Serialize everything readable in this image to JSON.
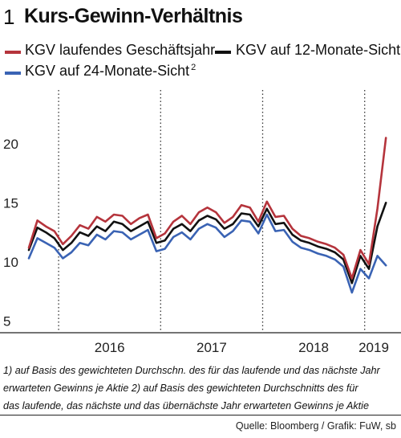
{
  "header": {
    "number": "1",
    "title": "Kurs-Gewinn-Verhältnis"
  },
  "legend": [
    {
      "label": "KGV laufendes Geschäftsjahr",
      "sup": "",
      "color": "#b5343c"
    },
    {
      "label": "KGV auf 12-Monate-Sicht",
      "sup": "1",
      "color": "#111111"
    },
    {
      "label": "KGV auf 24-Monate-Sicht",
      "sup": "2",
      "color": "#3a63b4"
    }
  ],
  "chart_data": {
    "type": "line",
    "title": "Kurs-Gewinn-Verhältnis",
    "xlabel": "",
    "ylabel": "",
    "x_range": [
      "2015-09",
      "2019-03"
    ],
    "ylim": [
      4,
      24
    ],
    "yticks": [
      5,
      10,
      15,
      20
    ],
    "xticklabels": [
      "2016",
      "2017",
      "2018",
      "2019"
    ],
    "grid": "vertical dotted lines at year boundaries",
    "legend_position": "top",
    "x": [
      "2015-09",
      "2015-10",
      "2015-11",
      "2015-12",
      "2016-01",
      "2016-02",
      "2016-03",
      "2016-04",
      "2016-05",
      "2016-06",
      "2016-07",
      "2016-08",
      "2016-09",
      "2016-10",
      "2016-11",
      "2016-12",
      "2017-01",
      "2017-02",
      "2017-03",
      "2017-04",
      "2017-05",
      "2017-06",
      "2017-07",
      "2017-08",
      "2017-09",
      "2017-10",
      "2017-11",
      "2017-12",
      "2018-01",
      "2018-02",
      "2018-03",
      "2018-04",
      "2018-05",
      "2018-06",
      "2018-07",
      "2018-08",
      "2018-09",
      "2018-10",
      "2018-11",
      "2018-12",
      "2019-01",
      "2019-02",
      "2019-03"
    ],
    "series": [
      {
        "name": "KGV laufendes Geschäftsjahr",
        "color": "#b5343c",
        "values": [
          11.2,
          13.5,
          13.0,
          12.6,
          11.5,
          12.2,
          13.1,
          12.8,
          13.8,
          13.4,
          14.0,
          13.9,
          13.2,
          13.7,
          14.0,
          12.0,
          12.4,
          13.4,
          13.9,
          13.2,
          14.2,
          14.6,
          14.2,
          13.3,
          13.8,
          14.8,
          14.6,
          13.4,
          15.1,
          13.8,
          13.9,
          12.8,
          12.2,
          12.0,
          11.7,
          11.5,
          11.2,
          10.6,
          8.6,
          11.0,
          9.8,
          14.5,
          20.5
        ]
      },
      {
        "name": "KGV auf 12-Monate-Sicht",
        "color": "#111111",
        "values": [
          11.0,
          12.9,
          12.5,
          12.0,
          11.0,
          11.6,
          12.5,
          12.2,
          13.0,
          12.6,
          13.4,
          13.2,
          12.6,
          13.0,
          13.4,
          11.6,
          11.8,
          12.8,
          13.2,
          12.6,
          13.5,
          13.9,
          13.6,
          12.8,
          13.2,
          14.1,
          14.0,
          13.0,
          14.5,
          13.2,
          13.3,
          12.3,
          11.8,
          11.6,
          11.3,
          11.1,
          10.8,
          10.2,
          8.2,
          10.5,
          9.4,
          13.0,
          15.0
        ]
      },
      {
        "name": "KGV auf 24-Monate-Sicht",
        "color": "#3a63b4",
        "values": [
          10.3,
          12.0,
          11.6,
          11.2,
          10.3,
          10.8,
          11.6,
          11.4,
          12.3,
          11.9,
          12.6,
          12.5,
          11.9,
          12.3,
          12.7,
          10.9,
          11.1,
          12.1,
          12.5,
          11.9,
          12.8,
          13.2,
          12.9,
          12.1,
          12.6,
          13.5,
          13.4,
          12.4,
          14.0,
          12.6,
          12.7,
          11.7,
          11.2,
          11.0,
          10.7,
          10.5,
          10.2,
          9.6,
          7.4,
          9.4,
          8.6,
          10.5,
          9.7
        ]
      }
    ]
  },
  "footnotes": [
    "1) auf Basis des gewichteten Durchschn. des für das laufende und das nächste Jahr",
    "erwarteten Gewinns je Aktie      2) auf Basis des gewichteten Durchschnitts des für",
    "das laufende, das nächste und das übernächste Jahr erwarteten Gewinns je Aktie"
  ],
  "source": "Quelle: Bloomberg / Grafik: FuW, sb"
}
